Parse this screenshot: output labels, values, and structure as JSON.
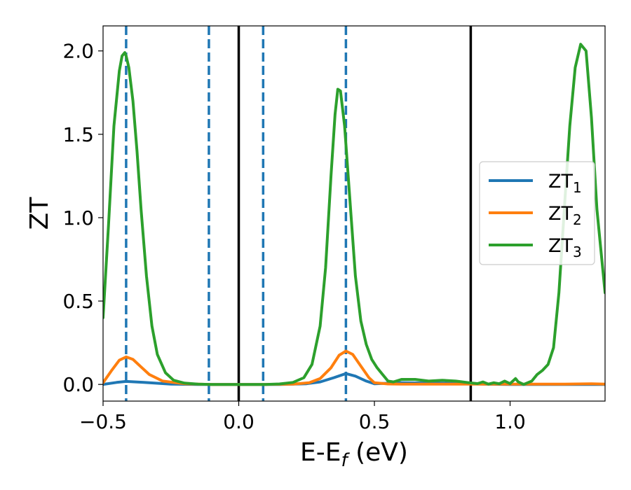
{
  "chart_data": {
    "type": "line",
    "xlabel": "E-E",
    "xlabel_sub": "f",
    "xlabel_unit": " (eV)",
    "ylabel": "ZT",
    "xlim": [
      -0.5,
      1.35
    ],
    "ylim": [
      -0.1,
      2.15
    ],
    "xticks": [
      -0.5,
      0.0,
      0.5,
      1.0
    ],
    "xtick_labels": [
      "−0.5",
      "0.0",
      "0.5",
      "1.0"
    ],
    "yticks": [
      0.0,
      0.5,
      1.0,
      1.5,
      2.0
    ],
    "ytick_labels": [
      "0.0",
      "0.5",
      "1.0",
      "1.5",
      "2.0"
    ],
    "grid": false,
    "legend_position": "center-right",
    "vlines": [
      {
        "x": -0.415,
        "style": "dashed",
        "color": "#1f77b4"
      },
      {
        "x": -0.11,
        "style": "dashed",
        "color": "#1f77b4"
      },
      {
        "x": 0.0,
        "style": "solid",
        "color": "#000000"
      },
      {
        "x": 0.09,
        "style": "dashed",
        "color": "#1f77b4"
      },
      {
        "x": 0.395,
        "style": "dashed",
        "color": "#1f77b4"
      },
      {
        "x": 0.855,
        "style": "solid",
        "color": "#000000"
      }
    ],
    "series": [
      {
        "name": "ZT",
        "sub": "1",
        "color": "#1f77b4",
        "x": [
          -0.5,
          -0.45,
          -0.415,
          -0.35,
          -0.25,
          -0.15,
          0.0,
          0.15,
          0.25,
          0.3,
          0.35,
          0.395,
          0.43,
          0.47,
          0.5,
          0.6,
          0.7,
          0.8,
          0.9,
          1.0,
          1.1,
          1.2,
          1.35
        ],
        "y": [
          0.0,
          0.012,
          0.018,
          0.012,
          0.002,
          0.0,
          0.0,
          0.0,
          0.004,
          0.015,
          0.04,
          0.065,
          0.05,
          0.02,
          0.004,
          0.01,
          0.008,
          0.006,
          0.002,
          0.0,
          0.0,
          0.0,
          0.0
        ]
      },
      {
        "name": "ZT",
        "sub": "2",
        "color": "#ff7f0e",
        "x": [
          -0.5,
          -0.47,
          -0.44,
          -0.415,
          -0.39,
          -0.36,
          -0.33,
          -0.28,
          -0.2,
          -0.1,
          0.0,
          0.1,
          0.2,
          0.26,
          0.3,
          0.34,
          0.37,
          0.395,
          0.42,
          0.45,
          0.48,
          0.5,
          0.55,
          0.6,
          0.7,
          0.8,
          0.9,
          1.0,
          1.1,
          1.2,
          1.3,
          1.35
        ],
        "y": [
          0.01,
          0.08,
          0.145,
          0.165,
          0.15,
          0.105,
          0.06,
          0.02,
          0.004,
          0.0,
          0.0,
          0.0,
          0.002,
          0.01,
          0.035,
          0.1,
          0.175,
          0.2,
          0.18,
          0.11,
          0.04,
          0.01,
          0.003,
          0.002,
          0.002,
          0.002,
          0.002,
          0.002,
          0.002,
          0.002,
          0.004,
          0.002
        ]
      },
      {
        "name": "ZT",
        "sub": "3",
        "color": "#2ca02c",
        "x": [
          -0.5,
          -0.48,
          -0.46,
          -0.44,
          -0.43,
          -0.42,
          -0.415,
          -0.405,
          -0.39,
          -0.375,
          -0.36,
          -0.34,
          -0.32,
          -0.3,
          -0.27,
          -0.24,
          -0.2,
          -0.15,
          -0.1,
          0.0,
          0.1,
          0.15,
          0.2,
          0.24,
          0.27,
          0.3,
          0.32,
          0.34,
          0.355,
          0.365,
          0.375,
          0.39,
          0.41,
          0.43,
          0.45,
          0.47,
          0.49,
          0.51,
          0.53,
          0.55,
          0.57,
          0.6,
          0.65,
          0.7,
          0.75,
          0.8,
          0.85,
          0.88,
          0.9,
          0.92,
          0.94,
          0.96,
          0.98,
          1.0,
          1.02,
          1.03,
          1.05,
          1.08,
          1.1,
          1.12,
          1.14,
          1.16,
          1.18,
          1.2,
          1.22,
          1.24,
          1.26,
          1.28,
          1.3,
          1.32,
          1.35
        ],
        "y": [
          0.4,
          0.95,
          1.55,
          1.88,
          1.97,
          1.99,
          1.97,
          1.9,
          1.7,
          1.4,
          1.05,
          0.65,
          0.35,
          0.18,
          0.07,
          0.025,
          0.008,
          0.002,
          0.0,
          0.0,
          0.0,
          0.003,
          0.012,
          0.04,
          0.12,
          0.35,
          0.7,
          1.25,
          1.62,
          1.77,
          1.76,
          1.55,
          1.1,
          0.65,
          0.38,
          0.24,
          0.15,
          0.1,
          0.06,
          0.02,
          0.015,
          0.03,
          0.03,
          0.02,
          0.025,
          0.02,
          0.01,
          0.005,
          0.015,
          0.002,
          0.01,
          0.004,
          0.02,
          0.005,
          0.035,
          0.015,
          0.0,
          0.02,
          0.06,
          0.085,
          0.12,
          0.22,
          0.55,
          1.05,
          1.55,
          1.9,
          2.04,
          2.0,
          1.6,
          1.05,
          0.55
        ]
      }
    ]
  }
}
